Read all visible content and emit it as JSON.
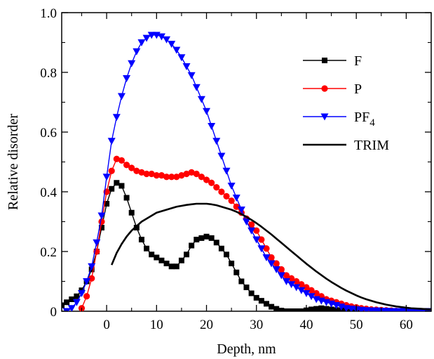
{
  "chart_data": {
    "type": "line",
    "xlabel": "Depth, nm",
    "ylabel": "Relative disorder",
    "xlim": [
      -9,
      65
    ],
    "ylim": [
      0,
      1.0
    ],
    "x_ticks": [
      0,
      10,
      20,
      30,
      40,
      50,
      60
    ],
    "x_tick_labels": [
      "0",
      "10",
      "20",
      "30",
      "40",
      "50",
      "60"
    ],
    "y_ticks": [
      0,
      0.2,
      0.4,
      0.6,
      0.8,
      1.0
    ],
    "y_tick_labels": [
      "0",
      "0.2",
      "0.4",
      "0.6",
      "0.8",
      "1.0"
    ],
    "grid": false,
    "legend_position": "top-right",
    "series": [
      {
        "name": "F",
        "color": "#000000",
        "marker": "square",
        "x": [
          -9,
          -8,
          -7,
          -6,
          -5,
          -4,
          -3,
          -2,
          -1,
          0,
          1,
          2,
          3,
          4,
          5,
          6,
          7,
          8,
          9,
          10,
          11,
          12,
          13,
          14,
          15,
          16,
          17,
          18,
          19,
          20,
          21,
          22,
          23,
          24,
          25,
          26,
          27,
          28,
          29,
          30,
          31,
          32,
          33,
          34,
          35,
          36,
          37,
          38,
          39,
          40,
          41,
          42,
          43,
          44,
          45,
          46,
          47,
          48,
          49,
          50,
          51,
          52,
          53,
          54,
          55,
          56,
          57,
          58,
          59,
          60,
          61,
          62,
          63,
          64,
          65
        ],
        "y": [
          0.02,
          0.03,
          0.04,
          0.05,
          0.07,
          0.1,
          0.14,
          0.2,
          0.28,
          0.36,
          0.41,
          0.43,
          0.42,
          0.38,
          0.33,
          0.28,
          0.24,
          0.21,
          0.19,
          0.18,
          0.17,
          0.16,
          0.15,
          0.15,
          0.17,
          0.19,
          0.22,
          0.24,
          0.245,
          0.25,
          0.245,
          0.23,
          0.21,
          0.19,
          0.16,
          0.13,
          0.1,
          0.08,
          0.06,
          0.045,
          0.035,
          0.025,
          0.015,
          0.008,
          0.002,
          0,
          0,
          0,
          0,
          0.003,
          0.006,
          0.008,
          0.01,
          0.008,
          0.006,
          0.004,
          0.003,
          0.002,
          0.001,
          0,
          0,
          0,
          0,
          0,
          0,
          0,
          0,
          0,
          0,
          0,
          0,
          0,
          0,
          0,
          0
        ]
      },
      {
        "name": "P",
        "color": "#ff0000",
        "marker": "circle",
        "x": [
          -5,
          -4,
          -3,
          -2,
          -1,
          0,
          1,
          2,
          3,
          4,
          5,
          6,
          7,
          8,
          9,
          10,
          11,
          12,
          13,
          14,
          15,
          16,
          17,
          18,
          19,
          20,
          21,
          22,
          23,
          24,
          25,
          26,
          27,
          28,
          29,
          30,
          31,
          32,
          33,
          34,
          35,
          36,
          37,
          38,
          39,
          40,
          41,
          42,
          43,
          44,
          45,
          46,
          47,
          48,
          49,
          50,
          51,
          52,
          53,
          54,
          55,
          56,
          57,
          58,
          59,
          60,
          61,
          62,
          63,
          64,
          65
        ],
        "y": [
          0.01,
          0.05,
          0.11,
          0.2,
          0.3,
          0.4,
          0.47,
          0.51,
          0.505,
          0.49,
          0.48,
          0.47,
          0.465,
          0.46,
          0.46,
          0.455,
          0.455,
          0.45,
          0.45,
          0.45,
          0.455,
          0.46,
          0.465,
          0.46,
          0.45,
          0.44,
          0.43,
          0.415,
          0.4,
          0.385,
          0.37,
          0.35,
          0.33,
          0.31,
          0.29,
          0.27,
          0.24,
          0.21,
          0.18,
          0.16,
          0.14,
          0.12,
          0.11,
          0.1,
          0.09,
          0.08,
          0.07,
          0.06,
          0.05,
          0.04,
          0.035,
          0.03,
          0.025,
          0.02,
          0.016,
          0.013,
          0.01,
          0.008,
          0.006,
          0.005,
          0.004,
          0.003,
          0.002,
          0.001,
          0.001,
          0,
          0,
          0,
          0,
          0,
          0
        ]
      },
      {
        "name": "PF",
        "name_subscript": "4",
        "color": "#0000ff",
        "marker": "triangle-down",
        "x": [
          -8,
          -7,
          -6,
          -5,
          -4,
          -3,
          -2,
          -1,
          0,
          1,
          2,
          3,
          4,
          5,
          6,
          7,
          8,
          9,
          10,
          11,
          12,
          13,
          14,
          15,
          16,
          17,
          18,
          19,
          20,
          21,
          22,
          23,
          24,
          25,
          26,
          27,
          28,
          29,
          30,
          31,
          32,
          33,
          34,
          35,
          36,
          37,
          38,
          39,
          40,
          41,
          42,
          43,
          44,
          45,
          46,
          47,
          48,
          49,
          50,
          51,
          52,
          53,
          54,
          55,
          56,
          57,
          58,
          59,
          60,
          61,
          62,
          63,
          64,
          65
        ],
        "y": [
          0,
          0.01,
          0.03,
          0.06,
          0.1,
          0.15,
          0.23,
          0.32,
          0.45,
          0.57,
          0.65,
          0.72,
          0.78,
          0.83,
          0.87,
          0.9,
          0.915,
          0.925,
          0.925,
          0.92,
          0.91,
          0.895,
          0.875,
          0.85,
          0.82,
          0.79,
          0.75,
          0.71,
          0.67,
          0.62,
          0.57,
          0.52,
          0.47,
          0.42,
          0.38,
          0.34,
          0.3,
          0.27,
          0.24,
          0.21,
          0.18,
          0.16,
          0.14,
          0.12,
          0.1,
          0.09,
          0.08,
          0.07,
          0.06,
          0.05,
          0.04,
          0.035,
          0.03,
          0.025,
          0.02,
          0.015,
          0.01,
          0.008,
          0.006,
          0.004,
          0.003,
          0.002,
          0.002,
          0.001,
          0.001,
          0,
          0,
          0,
          0,
          0,
          0,
          0,
          0,
          0
        ]
      },
      {
        "name": "TRIM",
        "color": "#000000",
        "marker": "none",
        "x": [
          1,
          2,
          3,
          4,
          5,
          6,
          7,
          8,
          9,
          10,
          11,
          12,
          13,
          14,
          15,
          16,
          17,
          18,
          19,
          20,
          21,
          22,
          23,
          24,
          25,
          26,
          27,
          28,
          29,
          30,
          31,
          32,
          33,
          34,
          35,
          36,
          37,
          38,
          39,
          40,
          41,
          42,
          43,
          44,
          45,
          46,
          47,
          48,
          49,
          50,
          51,
          52,
          53,
          54,
          55,
          56,
          57,
          58,
          59,
          60,
          61,
          62,
          63,
          64,
          65
        ],
        "y": [
          0.155,
          0.195,
          0.225,
          0.25,
          0.27,
          0.285,
          0.3,
          0.31,
          0.32,
          0.33,
          0.335,
          0.34,
          0.345,
          0.35,
          0.353,
          0.356,
          0.358,
          0.36,
          0.36,
          0.36,
          0.358,
          0.355,
          0.35,
          0.345,
          0.34,
          0.333,
          0.325,
          0.316,
          0.306,
          0.295,
          0.283,
          0.27,
          0.257,
          0.243,
          0.229,
          0.215,
          0.201,
          0.187,
          0.173,
          0.159,
          0.146,
          0.133,
          0.121,
          0.109,
          0.098,
          0.088,
          0.078,
          0.069,
          0.061,
          0.053,
          0.046,
          0.04,
          0.035,
          0.03,
          0.026,
          0.022,
          0.019,
          0.016,
          0.014,
          0.012,
          0.01,
          0.009,
          0.008,
          0.007,
          0.006
        ]
      }
    ]
  }
}
